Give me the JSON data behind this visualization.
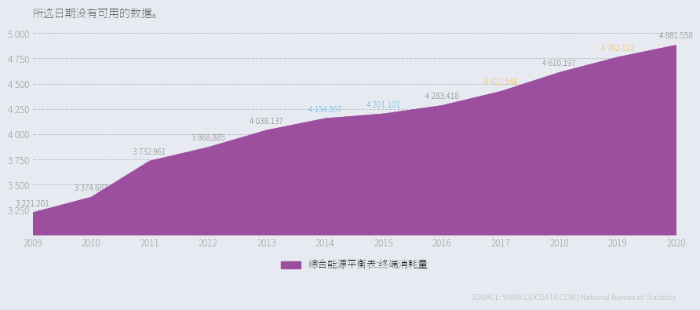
{
  "years": [
    2009,
    2010,
    2011,
    2012,
    2013,
    2014,
    2015,
    2016,
    2017,
    2018,
    2019,
    2020
  ],
  "values": [
    3221.201,
    3374.687,
    3732.961,
    3868.885,
    4038.137,
    4154.557,
    4201.101,
    4283.418,
    4422.548,
    4610.197,
    4762.122,
    4881.558
  ],
  "area_color": "#9B4F9E",
  "line_color": "#9B4F9E",
  "bg_color": "#E8EAF2",
  "plot_bg_color": "#E8EAF2",
  "title": "所选日期没有可用的数据。",
  "ylim": [
    3000,
    5000
  ],
  "yticks": [
    3250,
    3500,
    3750,
    4000,
    4250,
    4500,
    4750,
    5000
  ],
  "legend_label": "综合能源平衡表:终端消耗量",
  "legend_color": "#9B4F9E",
  "source_text": "SOURCE: WWW.CEICDATA.COM | National Bureau of Statistics",
  "annotation_colors": [
    "#555555",
    "#555555",
    "#555555",
    "#555555",
    "#555555",
    "#00AADD",
    "#00AADD",
    "#555555",
    "#FFA500",
    "#555555",
    "#FFA500",
    "#555555"
  ],
  "annotation_labels": [
    "3 221.201",
    "3 374.687",
    "3 732.961",
    "3 868.885",
    "4 038.137",
    "4 154.557",
    "4 201.101",
    "4 283.418",
    "4 422.548",
    "4 610.197",
    "4 762.122",
    "4 881.558"
  ]
}
